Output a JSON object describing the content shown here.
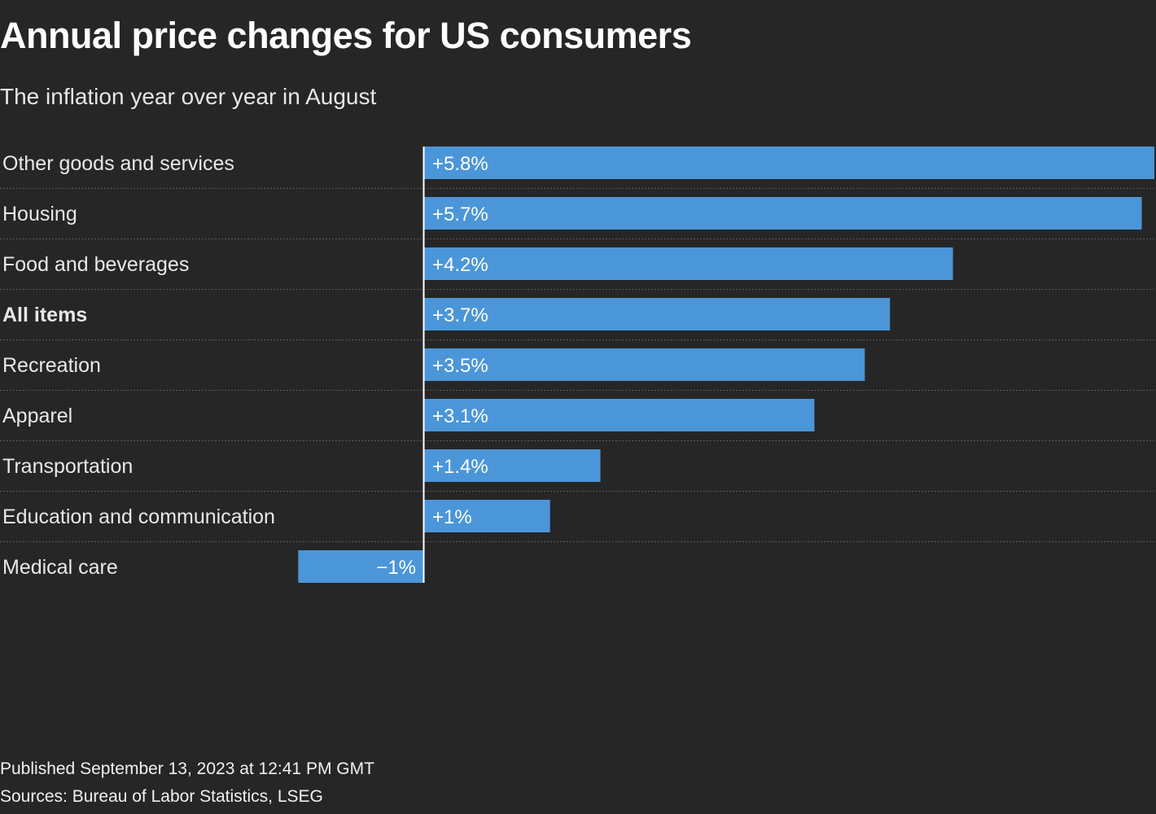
{
  "header": {
    "title": "Annual price changes for US consumers",
    "subtitle": "The inflation year over year in August"
  },
  "footer": {
    "published": "Published September 13, 2023 at 12:41 PM GMT",
    "sources": "Sources: Bureau of Labor Statistics, LSEG"
  },
  "colors": {
    "background": "#262626",
    "bar": "#4b96d8",
    "text": "#ffffff",
    "gridline": "#5a5a5a",
    "axis": "#ffffff"
  },
  "chart_data": {
    "type": "bar",
    "orientation": "horizontal",
    "title": "Annual price changes for US consumers",
    "subtitle": "The inflation year over year in August",
    "xlabel": "",
    "ylabel": "",
    "unit": "%",
    "xlim": [
      -1.0,
      5.8
    ],
    "grid": false,
    "categories": [
      "Other goods and services",
      "Housing",
      "Food and beverages",
      "All items",
      "Recreation",
      "Apparel",
      "Transportation",
      "Education and communication",
      "Medical care"
    ],
    "values": [
      5.8,
      5.7,
      4.2,
      3.7,
      3.5,
      3.1,
      1.4,
      1.0,
      -1.0
    ],
    "value_labels": [
      "+5.8%",
      "+5.7%",
      "+4.2%",
      "+3.7%",
      "+3.5%",
      "+3.1%",
      "+1.4%",
      "+1%",
      "−1%"
    ],
    "highlighted": [
      "All items"
    ]
  }
}
